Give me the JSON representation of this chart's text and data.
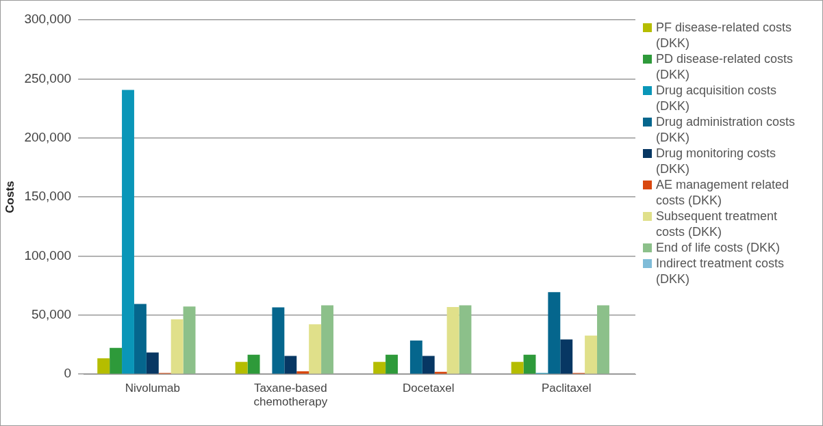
{
  "chart_data": {
    "type": "bar",
    "ylabel": "Costs",
    "categories": [
      "Nivolumab",
      "Taxane-based chemotherapy",
      "Docetaxel",
      "Paclitaxel"
    ],
    "series": [
      {
        "name": "PF disease-related costs (DKK)",
        "color": "#b5bd00",
        "values": [
          13500,
          10400,
          10400,
          10400
        ]
      },
      {
        "name": "PD disease-related costs (DKK)",
        "color": "#2e9a3a",
        "values": [
          22300,
          16500,
          16500,
          16500
        ]
      },
      {
        "name": "Drug acquisition costs (DKK)",
        "color": "#0a96b8",
        "values": [
          240600,
          0,
          0,
          1000
        ]
      },
      {
        "name": "Drug administration costs (DKK)",
        "color": "#05668d",
        "values": [
          59400,
          56500,
          28500,
          69400
        ]
      },
      {
        "name": "Drug monitoring costs (DKK)",
        "color": "#073763",
        "values": [
          18300,
          15400,
          15400,
          29400
        ]
      },
      {
        "name": "AE management related costs (DKK)",
        "color": "#d9480f",
        "values": [
          1000,
          2500,
          2000,
          1000
        ]
      },
      {
        "name": "Subsequent treatment costs (DKK)",
        "color": "#e0e08a",
        "values": [
          46500,
          42300,
          56900,
          32700
        ]
      },
      {
        "name": "End of life costs (DKK)",
        "color": "#8cc08a",
        "values": [
          57300,
          58300,
          58300,
          58300
        ]
      },
      {
        "name": "Indirect treatment costs (DKK)",
        "color": "#7fbcd8",
        "values": [
          0,
          0,
          0,
          0
        ]
      }
    ],
    "ylim": [
      0,
      300000
    ],
    "yticks": [
      0,
      {
        "value": 50000,
        "label": "50,000"
      },
      {
        "value": 100000,
        "label": "100,000"
      },
      {
        "value": 150000,
        "label": "150,000"
      },
      {
        "value": 200000,
        "label": "200,000"
      },
      {
        "value": 250000,
        "label": "250,000"
      },
      {
        "value": 300000,
        "label": "300,000"
      }
    ],
    "grid": "y",
    "legend": "right"
  }
}
